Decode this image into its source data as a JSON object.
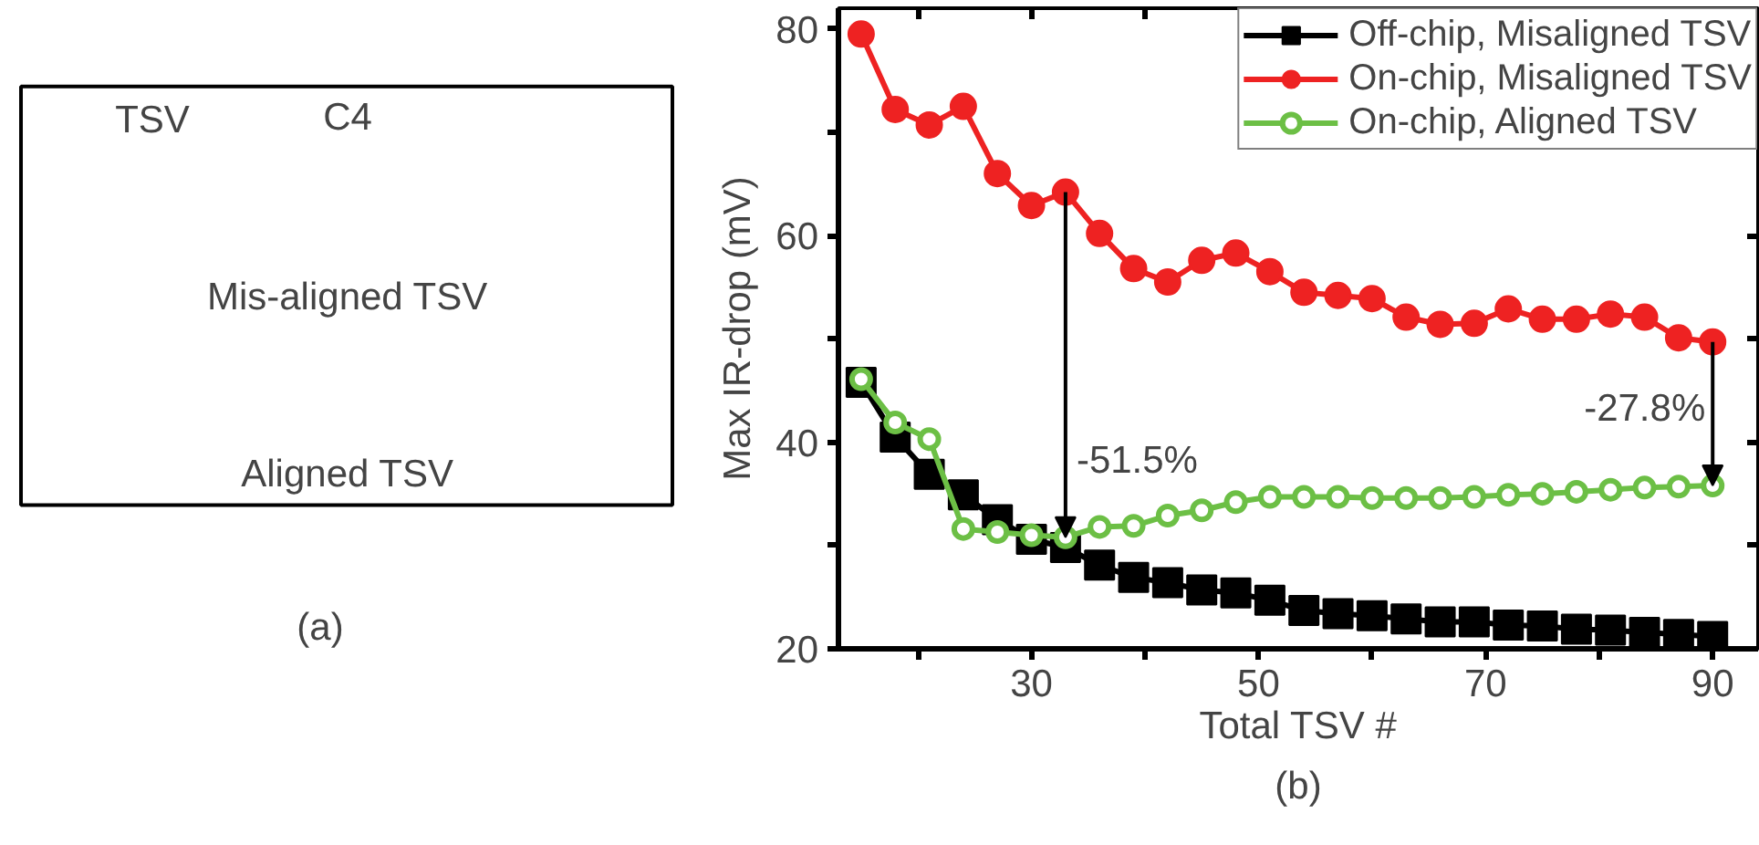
{
  "chart_data": [
    {
      "type": "other",
      "annotations": [
        "TSV",
        "C4",
        "Mis-aligned TSV",
        "Aligned TSV",
        "(a)"
      ]
    },
    {
      "type": "line",
      "xlabel": "Total TSV #",
      "ylabel": "Max IR-drop (mV)",
      "x": [
        15,
        18,
        21,
        24,
        27,
        30,
        33,
        36,
        39,
        42,
        45,
        48,
        51,
        54,
        57,
        60,
        63,
        66,
        69,
        72,
        75,
        78,
        81,
        84,
        87,
        90
      ],
      "series": [
        {
          "name": "Off-chip, Misaligned TSV",
          "color": "#000000",
          "marker": "square",
          "values": [
            45.8,
            40.5,
            36.9,
            34.9,
            32.5,
            30.6,
            29.8,
            28.1,
            26.9,
            26.4,
            25.7,
            25.4,
            24.7,
            23.7,
            23.4,
            23.2,
            22.9,
            22.6,
            22.6,
            22.3,
            22.2,
            21.9,
            21.8,
            21.6,
            21.4,
            21.2
          ]
        },
        {
          "name": "On-chip, Misaligned TSV",
          "color": "#ee2222",
          "marker": "circle",
          "values": [
            79.5,
            72.2,
            70.7,
            72.5,
            66.0,
            62.9,
            64.2,
            60.2,
            56.8,
            55.5,
            57.6,
            58.3,
            56.5,
            54.5,
            54.2,
            53.9,
            52.1,
            51.4,
            51.5,
            52.9,
            51.9,
            51.9,
            52.4,
            52.1,
            50.1,
            49.7
          ]
        },
        {
          "name": "On-chip, Aligned TSV",
          "color": "#6cbf45",
          "marker": "open_circle",
          "values": [
            46.1,
            41.9,
            40.3,
            31.6,
            31.3,
            31.0,
            30.8,
            31.8,
            31.9,
            32.9,
            33.4,
            34.2,
            34.7,
            34.7,
            34.7,
            34.6,
            34.6,
            34.6,
            34.7,
            34.9,
            35.0,
            35.2,
            35.4,
            35.6,
            35.7,
            35.8
          ]
        }
      ],
      "xlim": [
        13,
        94
      ],
      "ylim": [
        20,
        82
      ],
      "xticks": [
        {
          "value": 20,
          "label": null
        },
        30,
        {
          "value": 40,
          "label": null
        },
        50,
        {
          "value": 60,
          "label": null
        },
        70,
        {
          "value": 80,
          "label": null
        },
        90
      ],
      "yticks": [
        20,
        {
          "value": 30,
          "label": null
        },
        40,
        {
          "value": 50,
          "label": null
        },
        60,
        {
          "value": 70,
          "label": null
        },
        80
      ],
      "legend": "top right",
      "grid": false,
      "annotations": [
        {
          "text": "-51.5%",
          "x": 33,
          "y": 30.8
        },
        {
          "text": "-27.8%",
          "x": 90,
          "y": 35.8
        },
        "(b)"
      ]
    }
  ]
}
